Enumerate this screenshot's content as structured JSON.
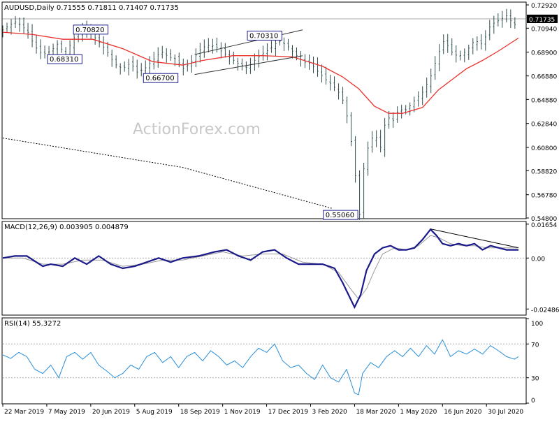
{
  "chart_data": [
    {
      "type": "candlestick",
      "panel": "price",
      "title": "AUDUSD,Daily  0.71555 0.71811 0.71407 0.71735",
      "ylim": [
        0.548,
        0.731
      ],
      "yticks": [
        "0.72920",
        "0.70940",
        "0.68900",
        "0.66880",
        "0.64880",
        "0.62840",
        "0.60800",
        "0.58820",
        "0.56780",
        "0.54800"
      ],
      "last_price_label": "0.71735",
      "watermark": "ActionForex.com",
      "series": [
        {
          "name": "ma_short",
          "color": "#e8312c"
        },
        {
          "name": "ma_long",
          "color": "#000000",
          "style": "dotted"
        }
      ],
      "price_path": [
        [
          0,
          0.708
        ],
        [
          6,
          0.715
        ],
        [
          12,
          0.708
        ],
        [
          16,
          0.694
        ],
        [
          20,
          0.687
        ],
        [
          24,
          0.69
        ],
        [
          28,
          0.697
        ],
        [
          31,
          0.685
        ],
        [
          35,
          0.7
        ],
        [
          40,
          0.708
        ],
        [
          44,
          0.705
        ],
        [
          48,
          0.698
        ],
        [
          52,
          0.69
        ],
        [
          56,
          0.679
        ],
        [
          60,
          0.675
        ],
        [
          64,
          0.68
        ],
        [
          67,
          0.672
        ],
        [
          71,
          0.675
        ],
        [
          75,
          0.682
        ],
        [
          79,
          0.69
        ],
        [
          83,
          0.685
        ],
        [
          87,
          0.683
        ],
        [
          90,
          0.675
        ],
        [
          94,
          0.68
        ],
        [
          98,
          0.69
        ],
        [
          102,
          0.695
        ],
        [
          106,
          0.694
        ],
        [
          110,
          0.689
        ],
        [
          114,
          0.684
        ],
        [
          118,
          0.679
        ],
        [
          122,
          0.676
        ],
        [
          126,
          0.682
        ],
        [
          130,
          0.688
        ],
        [
          134,
          0.692
        ],
        [
          138,
          0.699
        ],
        [
          142,
          0.695
        ],
        [
          146,
          0.688
        ],
        [
          150,
          0.681
        ],
        [
          154,
          0.679
        ],
        [
          158,
          0.672
        ],
        [
          162,
          0.665
        ],
        [
          165,
          0.661
        ],
        [
          168,
          0.655
        ],
        [
          171,
          0.645
        ],
        [
          173,
          0.628
        ],
        [
          175,
          0.605
        ],
        [
          177,
          0.575
        ],
        [
          178.5,
          0.551
        ],
        [
          180,
          0.585
        ],
        [
          183,
          0.61
        ],
        [
          186,
          0.62
        ],
        [
          189,
          0.608
        ],
        [
          192,
          0.635
        ],
        [
          195,
          0.63
        ],
        [
          198,
          0.64
        ],
        [
          202,
          0.64
        ],
        [
          206,
          0.648
        ],
        [
          210,
          0.655
        ],
        [
          214,
          0.668
        ],
        [
          218,
          0.688
        ],
        [
          221,
          0.7
        ],
        [
          224,
          0.69
        ],
        [
          228,
          0.685
        ],
        [
          232,
          0.69
        ],
        [
          236,
          0.699
        ],
        [
          240,
          0.696
        ],
        [
          244,
          0.712
        ],
        [
          248,
          0.716
        ],
        [
          252,
          0.72
        ],
        [
          256,
          0.712
        ],
        [
          258,
          0.717
        ]
      ],
      "ma_short_path": [
        [
          0,
          0.706
        ],
        [
          15,
          0.704
        ],
        [
          30,
          0.7
        ],
        [
          45,
          0.7
        ],
        [
          60,
          0.692
        ],
        [
          75,
          0.681
        ],
        [
          90,
          0.678
        ],
        [
          100,
          0.682
        ],
        [
          115,
          0.686
        ],
        [
          130,
          0.686
        ],
        [
          145,
          0.685
        ],
        [
          160,
          0.677
        ],
        [
          170,
          0.668
        ],
        [
          178,
          0.658
        ],
        [
          186,
          0.643
        ],
        [
          193,
          0.637
        ],
        [
          200,
          0.637
        ],
        [
          210,
          0.642
        ],
        [
          218,
          0.657
        ],
        [
          225,
          0.666
        ],
        [
          232,
          0.675
        ],
        [
          240,
          0.682
        ],
        [
          248,
          0.69
        ],
        [
          258,
          0.701
        ]
      ],
      "ma_long_path": [
        [
          0,
          0.616
        ],
        [
          90,
          0.591
        ],
        [
          165,
          0.556
        ]
      ],
      "trendlines": [
        {
          "from": [
            96,
            0.687
          ],
          "to": [
            150,
            0.708
          ]
        },
        {
          "from": [
            96,
            0.67
          ],
          "to": [
            150,
            0.686
          ]
        }
      ],
      "annotations": [
        {
          "text": "0.70820",
          "x": 44,
          "y": 0.7082
        },
        {
          "text": "0.68310",
          "x": 31,
          "y": 0.6831
        },
        {
          "text": "0.66700",
          "x": 79,
          "y": 0.667
        },
        {
          "text": "0.70310",
          "x": 131,
          "y": 0.7031
        },
        {
          "text": "0.55060",
          "x": 169,
          "y": 0.5506
        }
      ],
      "xticks": [
        {
          "label": "22 Mar 2019",
          "x": 0
        },
        {
          "label": "7 May 2019",
          "x": 22
        },
        {
          "label": "20 Jun 2019",
          "x": 44
        },
        {
          "label": "5 Aug 2019",
          "x": 66
        },
        {
          "label": "18 Sep 2019",
          "x": 88
        },
        {
          "label": "1 Nov 2019",
          "x": 110
        },
        {
          "label": "17 Dec 2019",
          "x": 132
        },
        {
          "label": "3 Feb 2020",
          "x": 154
        },
        {
          "label": "18 Mar 2020",
          "x": 176
        },
        {
          "label": "1 May 2020",
          "x": 198
        },
        {
          "label": "16 Jun 2020",
          "x": 220
        },
        {
          "label": "30 Jul 2020",
          "x": 242
        }
      ]
    },
    {
      "type": "line",
      "panel": "macd",
      "title": "MACD(12,26,9) 0.003905 0.004879",
      "ylim": [
        -0.0275,
        0.0175
      ],
      "yticks": [
        "0.01654",
        "0.00",
        "-0.02486"
      ],
      "macd_path": [
        [
          0,
          0.0
        ],
        [
          6,
          0.001
        ],
        [
          12,
          0.001
        ],
        [
          20,
          -0.004
        ],
        [
          24,
          -0.003
        ],
        [
          30,
          -0.004
        ],
        [
          36,
          0.0
        ],
        [
          42,
          -0.003
        ],
        [
          48,
          0.001
        ],
        [
          54,
          -0.003
        ],
        [
          60,
          -0.005
        ],
        [
          66,
          -0.004
        ],
        [
          72,
          -0.002
        ],
        [
          78,
          0.0
        ],
        [
          84,
          -0.002
        ],
        [
          90,
          0.0
        ],
        [
          98,
          0.001
        ],
        [
          106,
          0.003
        ],
        [
          112,
          0.004
        ],
        [
          118,
          0.001
        ],
        [
          124,
          -0.001
        ],
        [
          130,
          0.003
        ],
        [
          136,
          0.004
        ],
        [
          142,
          0.0
        ],
        [
          148,
          -0.003
        ],
        [
          154,
          -0.003
        ],
        [
          160,
          -0.003
        ],
        [
          166,
          -0.005
        ],
        [
          170,
          -0.012
        ],
        [
          174,
          -0.02
        ],
        [
          176,
          -0.024
        ],
        [
          179,
          -0.018
        ],
        [
          182,
          -0.006
        ],
        [
          186,
          0.002
        ],
        [
          190,
          0.005
        ],
        [
          194,
          0.006
        ],
        [
          198,
          0.004
        ],
        [
          202,
          0.004
        ],
        [
          206,
          0.005
        ],
        [
          210,
          0.009
        ],
        [
          214,
          0.014
        ],
        [
          217,
          0.011
        ],
        [
          220,
          0.007
        ],
        [
          224,
          0.006
        ],
        [
          228,
          0.007
        ],
        [
          232,
          0.006
        ],
        [
          236,
          0.007
        ],
        [
          240,
          0.004
        ],
        [
          244,
          0.006
        ],
        [
          248,
          0.005
        ],
        [
          252,
          0.004
        ],
        [
          258,
          0.004
        ]
      ],
      "signal_path": [
        [
          0,
          0.0
        ],
        [
          10,
          0.0
        ],
        [
          20,
          -0.003
        ],
        [
          30,
          -0.003
        ],
        [
          40,
          -0.001
        ],
        [
          50,
          -0.001
        ],
        [
          60,
          -0.004
        ],
        [
          70,
          -0.003
        ],
        [
          80,
          -0.001
        ],
        [
          90,
          -0.001
        ],
        [
          100,
          0.001
        ],
        [
          110,
          0.003
        ],
        [
          120,
          0.001
        ],
        [
          130,
          0.002
        ],
        [
          140,
          0.002
        ],
        [
          150,
          -0.002
        ],
        [
          160,
          -0.003
        ],
        [
          168,
          -0.007
        ],
        [
          174,
          -0.015
        ],
        [
          178,
          -0.02
        ],
        [
          182,
          -0.015
        ],
        [
          186,
          -0.006
        ],
        [
          190,
          0.002
        ],
        [
          196,
          0.005
        ],
        [
          202,
          0.004
        ],
        [
          208,
          0.006
        ],
        [
          214,
          0.011
        ],
        [
          218,
          0.01
        ],
        [
          224,
          0.007
        ],
        [
          230,
          0.006
        ],
        [
          236,
          0.006
        ],
        [
          242,
          0.005
        ],
        [
          248,
          0.005
        ],
        [
          258,
          0.005
        ]
      ],
      "trendline": {
        "from": [
          214,
          0.0142
        ],
        "to": [
          258,
          0.005
        ]
      }
    },
    {
      "type": "line",
      "panel": "rsi",
      "title": "RSI(14) 55.3272",
      "ylim": [
        0,
        100
      ],
      "yticks": [
        "100",
        "70",
        "30",
        "0"
      ],
      "levels": [
        70,
        30
      ],
      "rsi_path": [
        [
          0,
          57
        ],
        [
          4,
          53
        ],
        [
          8,
          60
        ],
        [
          12,
          55
        ],
        [
          16,
          40
        ],
        [
          20,
          35
        ],
        [
          24,
          45
        ],
        [
          28,
          30
        ],
        [
          32,
          55
        ],
        [
          36,
          60
        ],
        [
          40,
          52
        ],
        [
          44,
          60
        ],
        [
          48,
          45
        ],
        [
          52,
          38
        ],
        [
          56,
          30
        ],
        [
          60,
          35
        ],
        [
          64,
          45
        ],
        [
          68,
          40
        ],
        [
          72,
          55
        ],
        [
          76,
          60
        ],
        [
          80,
          48
        ],
        [
          84,
          55
        ],
        [
          88,
          42
        ],
        [
          92,
          55
        ],
        [
          96,
          60
        ],
        [
          100,
          50
        ],
        [
          104,
          62
        ],
        [
          108,
          55
        ],
        [
          112,
          45
        ],
        [
          116,
          50
        ],
        [
          120,
          42
        ],
        [
          124,
          55
        ],
        [
          128,
          65
        ],
        [
          132,
          60
        ],
        [
          136,
          70
        ],
        [
          140,
          50
        ],
        [
          144,
          42
        ],
        [
          148,
          45
        ],
        [
          152,
          35
        ],
        [
          156,
          28
        ],
        [
          160,
          45
        ],
        [
          164,
          30
        ],
        [
          168,
          25
        ],
        [
          172,
          40
        ],
        [
          176,
          12
        ],
        [
          178,
          10
        ],
        [
          180,
          35
        ],
        [
          184,
          48
        ],
        [
          188,
          42
        ],
        [
          192,
          55
        ],
        [
          196,
          62
        ],
        [
          200,
          55
        ],
        [
          204,
          65
        ],
        [
          208,
          55
        ],
        [
          212,
          68
        ],
        [
          216,
          58
        ],
        [
          220,
          75
        ],
        [
          224,
          55
        ],
        [
          228,
          62
        ],
        [
          232,
          58
        ],
        [
          236,
          64
        ],
        [
          240,
          58
        ],
        [
          244,
          68
        ],
        [
          248,
          62
        ],
        [
          252,
          55
        ],
        [
          256,
          52
        ],
        [
          258,
          55
        ]
      ]
    }
  ]
}
